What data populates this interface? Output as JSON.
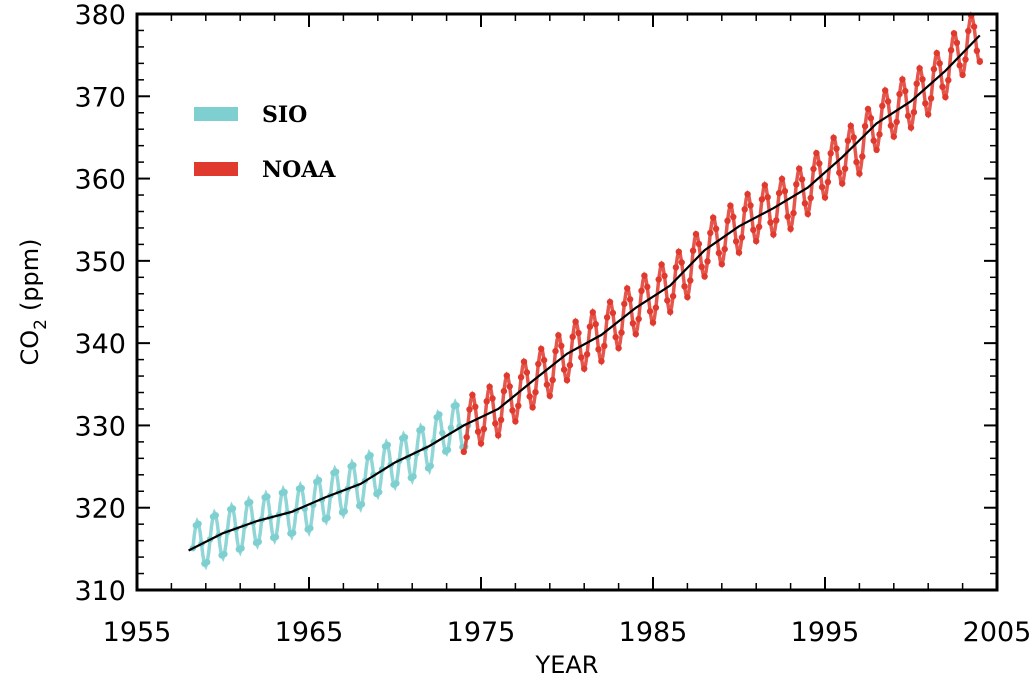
{
  "chart_data": {
    "type": "line",
    "title": "",
    "xlabel": "YEAR",
    "ylabel": "CO",
    "ylabel_subscript": "2",
    "ylabel_unit": "(ppm)",
    "xlim": [
      1955,
      2005
    ],
    "ylim": [
      310,
      380
    ],
    "x_ticks": [
      1955,
      1965,
      1975,
      1985,
      1995,
      2005
    ],
    "y_ticks": [
      310,
      320,
      330,
      340,
      350,
      360,
      370,
      380
    ],
    "grid": false,
    "legend_position": "top-left",
    "series": [
      {
        "name": "SIO",
        "color": "#7ecfd0",
        "x": [
          1958,
          1959,
          1960,
          1961,
          1962,
          1963,
          1964,
          1965,
          1966,
          1967,
          1968,
          1969,
          1970,
          1971,
          1972,
          1973,
          1974
        ],
        "trend": [
          314.8,
          315.9,
          316.9,
          317.6,
          318.4,
          319.0,
          319.5,
          320.0,
          321.3,
          322.1,
          322.9,
          324.4,
          325.5,
          326.3,
          327.5,
          329.6,
          330.0
        ],
        "amplitude": 3.0
      },
      {
        "name": "NOAA",
        "color": "#e03a2e",
        "x": [
          1974,
          1975,
          1976,
          1977,
          1978,
          1979,
          1980,
          1981,
          1982,
          1983,
          1984,
          1985,
          1986,
          1987,
          1988,
          1989,
          1990,
          1991,
          1992,
          1993,
          1994,
          1995,
          1996,
          1997,
          1998,
          1999,
          2000,
          2001,
          2002,
          2003,
          2004
        ],
        "trend": [
          330.0,
          331.0,
          332.0,
          333.7,
          335.4,
          336.8,
          338.7,
          340.1,
          341.0,
          342.6,
          344.3,
          345.7,
          347.0,
          348.8,
          351.3,
          352.8,
          354.2,
          355.6,
          356.4,
          357.1,
          358.9,
          360.9,
          362.6,
          363.8,
          366.7,
          368.3,
          369.4,
          371.0,
          373.1,
          375.8,
          377.4
        ],
        "amplitude": 3.2
      },
      {
        "name": "",
        "color": "#000000",
        "x": [
          1958,
          1960,
          1962,
          1964,
          1966,
          1968,
          1970,
          1972,
          1974,
          1976,
          1978,
          1980,
          1982,
          1984,
          1986,
          1988,
          1990,
          1992,
          1994,
          1996,
          1998,
          2000,
          2002,
          2004
        ],
        "y": [
          314.8,
          316.9,
          318.4,
          319.5,
          321.3,
          322.9,
          325.5,
          327.5,
          330.0,
          332.0,
          335.4,
          338.7,
          341.0,
          344.3,
          347.0,
          351.3,
          354.2,
          356.4,
          358.9,
          362.6,
          366.7,
          369.4,
          373.1,
          377.4
        ]
      }
    ]
  }
}
